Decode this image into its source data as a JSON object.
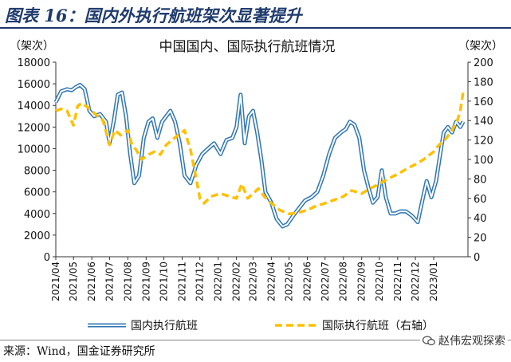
{
  "header": {
    "title": "图表 16：国内外执行航班架次显著提升"
  },
  "footer": {
    "source": "来源：Wind，国金证券研究所",
    "watermark": "赵伟宏观探索"
  },
  "colors": {
    "domestic": "#2e75b6",
    "international": "#ffc000",
    "header": "#1f3b6e"
  },
  "chart_data": {
    "type": "line",
    "title": "中国国内、国际执行航班情况",
    "y_left_unit": "（架次）",
    "y_right_unit": "（架次）",
    "y_left_lim": [
      0,
      18000
    ],
    "y_left_ticks": [
      "0",
      "2000",
      "4000",
      "6000",
      "8000",
      "10000",
      "12000",
      "14000",
      "16000",
      "18000"
    ],
    "y_right_lim": [
      0,
      200
    ],
    "y_right_ticks": [
      "0",
      "20",
      "40",
      "60",
      "80",
      "100",
      "120",
      "140",
      "160",
      "180",
      "200"
    ],
    "x_lim": [
      "2021-04-01",
      "2023-02-28"
    ],
    "x_ticks": [
      "2021/04",
      "2021/05",
      "2021/06",
      "2021/07",
      "2021/08",
      "2021/09",
      "2021/10",
      "2021/11",
      "2021/12",
      "2022/01",
      "2022/02",
      "2022/03",
      "2022/04",
      "2022/05",
      "2022/06",
      "2022/07",
      "2022/08",
      "2022/09",
      "2022/10",
      "2022/11",
      "2022/12",
      "2023/01"
    ],
    "series": [
      {
        "name": "国内执行航班",
        "axis": "left",
        "style": "double-line",
        "x": [
          "2021-04-01",
          "2021-04-10",
          "2021-04-20",
          "2021-04-28",
          "2021-05-05",
          "2021-05-12",
          "2021-05-20",
          "2021-05-28",
          "2021-06-05",
          "2021-06-15",
          "2021-06-25",
          "2021-07-01",
          "2021-07-08",
          "2021-07-15",
          "2021-07-22",
          "2021-07-29",
          "2021-08-05",
          "2021-08-12",
          "2021-08-20",
          "2021-08-28",
          "2021-09-05",
          "2021-09-12",
          "2021-09-20",
          "2021-09-28",
          "2021-10-05",
          "2021-10-12",
          "2021-10-20",
          "2021-10-28",
          "2021-11-05",
          "2021-11-15",
          "2021-11-25",
          "2021-12-05",
          "2021-12-15",
          "2021-12-25",
          "2022-01-05",
          "2022-01-15",
          "2022-01-25",
          "2022-02-01",
          "2022-02-08",
          "2022-02-15",
          "2022-02-22",
          "2022-03-01",
          "2022-03-08",
          "2022-03-15",
          "2022-03-22",
          "2022-04-01",
          "2022-04-10",
          "2022-04-20",
          "2022-04-28",
          "2022-05-08",
          "2022-05-18",
          "2022-05-28",
          "2022-06-08",
          "2022-06-18",
          "2022-06-28",
          "2022-07-08",
          "2022-07-18",
          "2022-07-28",
          "2022-08-05",
          "2022-08-12",
          "2022-08-20",
          "2022-08-28",
          "2022-09-05",
          "2022-09-12",
          "2022-09-20",
          "2022-09-28",
          "2022-10-05",
          "2022-10-12",
          "2022-10-20",
          "2022-10-28",
          "2022-11-05",
          "2022-11-15",
          "2022-11-25",
          "2022-12-05",
          "2022-12-12",
          "2022-12-20",
          "2022-12-28",
          "2023-01-05",
          "2023-01-12",
          "2023-01-18",
          "2023-01-25",
          "2023-02-01",
          "2023-02-08",
          "2023-02-15",
          "2023-02-20"
        ],
        "values": [
          14300,
          15300,
          15500,
          15400,
          15700,
          15900,
          15500,
          13500,
          13000,
          13200,
          12500,
          10500,
          12500,
          15000,
          15200,
          13000,
          9500,
          6800,
          7500,
          11000,
          12500,
          12800,
          11000,
          12500,
          13000,
          13500,
          12500,
          10500,
          7500,
          6800,
          8500,
          9500,
          10000,
          10500,
          9500,
          10800,
          11000,
          12000,
          15000,
          10500,
          13000,
          13500,
          11500,
          9000,
          6000,
          5000,
          3500,
          2800,
          3000,
          3800,
          4500,
          5200,
          5500,
          6000,
          7500,
          9500,
          11000,
          11500,
          11800,
          12500,
          12200,
          11000,
          8000,
          6500,
          5000,
          5500,
          8000,
          5500,
          4000,
          4000,
          4200,
          4200,
          3800,
          3200,
          5000,
          7000,
          5500,
          7000,
          9500,
          11500,
          12000,
          11500,
          12500,
          12000,
          12500
        ]
      },
      {
        "name": "国际执行航班（右轴）",
        "axis": "right",
        "style": "dashed",
        "x": [
          "2021-04-01",
          "2021-04-10",
          "2021-04-20",
          "2021-05-01",
          "2021-05-08",
          "2021-05-15",
          "2021-05-22",
          "2021-06-01",
          "2021-06-10",
          "2021-06-20",
          "2021-07-01",
          "2021-07-10",
          "2021-07-20",
          "2021-08-01",
          "2021-08-08",
          "2021-08-15",
          "2021-08-25",
          "2021-09-05",
          "2021-09-15",
          "2021-09-25",
          "2021-10-05",
          "2021-10-15",
          "2021-10-25",
          "2021-11-05",
          "2021-11-15",
          "2021-11-25",
          "2021-12-01",
          "2021-12-08",
          "2021-12-20",
          "2022-01-05",
          "2022-01-20",
          "2022-02-01",
          "2022-02-10",
          "2022-02-20",
          "2022-03-01",
          "2022-03-10",
          "2022-03-20",
          "2022-04-01",
          "2022-04-15",
          "2022-05-01",
          "2022-05-15",
          "2022-06-01",
          "2022-06-15",
          "2022-07-01",
          "2022-07-15",
          "2022-08-01",
          "2022-08-15",
          "2022-09-01",
          "2022-09-15",
          "2022-10-01",
          "2022-10-15",
          "2022-11-01",
          "2022-11-15",
          "2022-12-01",
          "2022-12-15",
          "2023-01-01",
          "2023-01-10",
          "2023-01-20",
          "2023-02-01",
          "2023-02-10",
          "2023-02-15",
          "2023-02-20"
        ],
        "values": [
          150,
          152,
          150,
          135,
          155,
          158,
          155,
          150,
          145,
          140,
          115,
          130,
          125,
          130,
          115,
          110,
          100,
          105,
          108,
          105,
          115,
          120,
          125,
          130,
          110,
          80,
          60,
          55,
          62,
          65,
          62,
          60,
          75,
          60,
          65,
          70,
          62,
          55,
          48,
          44,
          45,
          48,
          52,
          55,
          58,
          62,
          68,
          65,
          70,
          75,
          80,
          85,
          90,
          95,
          100,
          108,
          115,
          120,
          130,
          140,
          150,
          170
        ]
      }
    ],
    "legend": {
      "position": "bottom"
    },
    "grid": false
  }
}
